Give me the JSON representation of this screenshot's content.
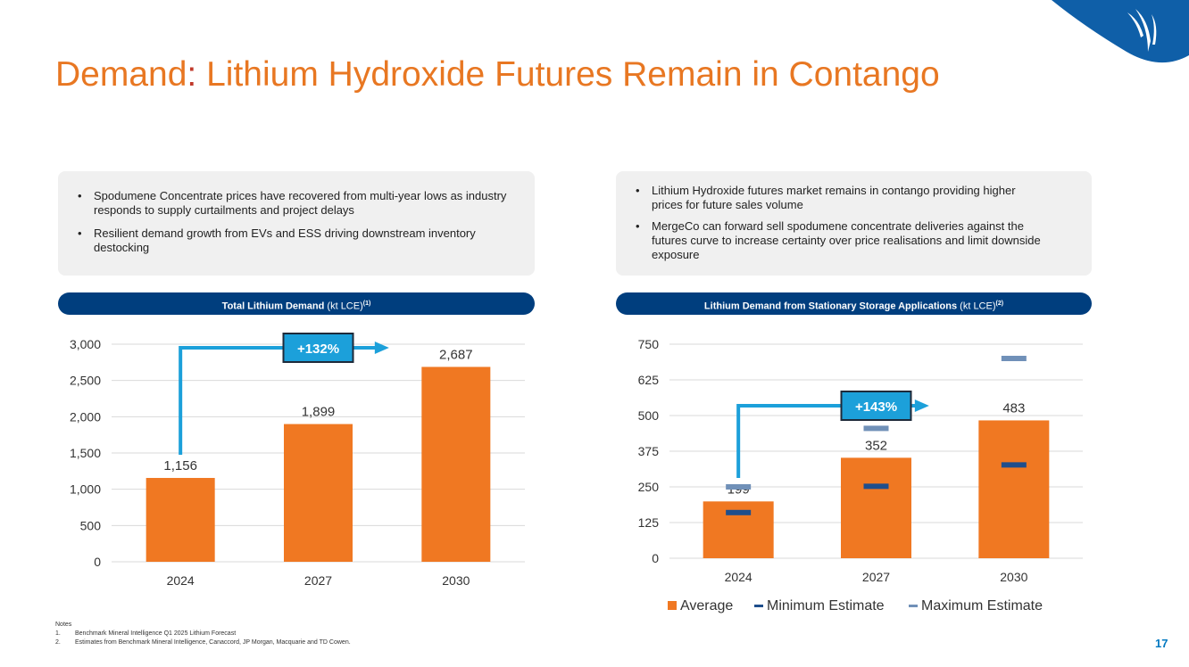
{
  "title": {
    "part1": "Demand",
    "colon": ":",
    "part2": " Lithium Hydroxide Futures Remain in Contango"
  },
  "left_panel": {
    "bullets": [
      "Spodumene Concentrate prices have recovered from multi-year lows as industry responds to supply curtailments and project delays",
      "Resilient demand growth from EVs and ESS driving downstream inventory destocking"
    ]
  },
  "right_panel": {
    "bullets": [
      "Lithium Hydroxide futures market remains in contango providing higher prices for future sales volume",
      "MergeCo can forward sell spodumene concentrate deliveries against the futures curve to increase certainty over price realisations and limit downside exposure"
    ]
  },
  "left_header": {
    "bold": "Total Lithium Demand",
    "rest": " (kt LCE)",
    "sup": "(1)"
  },
  "right_header": {
    "bold": "Lithium Demand from Stationary Storage Applications",
    "rest": " (kt LCE)",
    "sup": "(2)"
  },
  "chart_data": [
    {
      "type": "bar",
      "title": "Total Lithium Demand (kt LCE)(1)",
      "categories": [
        "2024",
        "2027",
        "2030"
      ],
      "values": [
        1156,
        1899,
        2687
      ],
      "value_labels": [
        "1,156",
        "1,899",
        "2,687"
      ],
      "yticks": [
        0,
        500,
        1000,
        1500,
        2000,
        2500,
        3000
      ],
      "ytick_labels": [
        "0",
        "500",
        "1,000",
        "1,500",
        "2,000",
        "2,500",
        "3,000"
      ],
      "ylim": [
        0,
        3000
      ],
      "growth_label": "+132%",
      "grid": true,
      "colors": {
        "bar": "#F07822",
        "arrow": "#1CA0DA",
        "badge": "#1CA0DA",
        "grid": "#D9D9D9"
      }
    },
    {
      "type": "bar",
      "title": "Lithium Demand from Stationary Storage Applications (kt LCE)(2)",
      "categories": [
        "2024",
        "2027",
        "2030"
      ],
      "series": [
        {
          "name": "Average",
          "values": [
            199,
            352,
            483
          ]
        },
        {
          "name": "Minimum Estimate",
          "values": [
            160,
            252,
            327
          ]
        },
        {
          "name": "Maximum Estimate",
          "values": [
            250,
            455,
            700
          ]
        }
      ],
      "value_labels": [
        "199",
        "352",
        "483"
      ],
      "yticks": [
        0,
        125,
        250,
        375,
        500,
        625,
        750
      ],
      "ytick_labels": [
        "0",
        "125",
        "250",
        "375",
        "500",
        "625",
        "750"
      ],
      "ylim": [
        0,
        750
      ],
      "growth_label": "+143%",
      "legend": "bottom",
      "grid": true,
      "colors": {
        "bar": "#F07822",
        "min": "#1F4E8C",
        "max": "#7090B8",
        "arrow": "#1CA0DA",
        "badge": "#1CA0DA",
        "grid": "#D9D9D9"
      }
    }
  ],
  "notes": {
    "heading": "Notes",
    "items": [
      {
        "num": "1.",
        "text": "Benchmark Mineral Intelligence Q1 2025 Lithium Forecast"
      },
      {
        "num": "2.",
        "text": "Estimates from Benchmark Mineral Intelligence, Canaccord, JP Morgan, Macquarie and TD Cowen."
      }
    ]
  },
  "page_number": "17",
  "brand_colors": {
    "title": "#E87722",
    "navy": "#003E7E",
    "accent": "#0079C1"
  }
}
